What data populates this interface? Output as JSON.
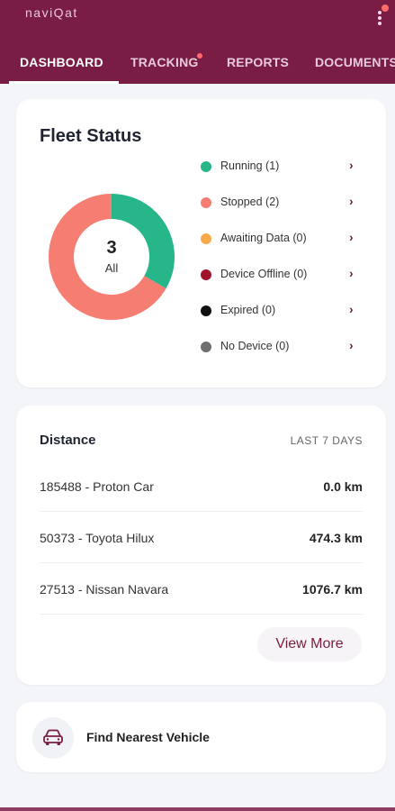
{
  "app": {
    "logo_text": "naviQat"
  },
  "tabs": [
    {
      "label": "DASHBOARD",
      "active": true
    },
    {
      "label": "TRACKING",
      "has_badge": true
    },
    {
      "label": "REPORTS"
    },
    {
      "label": "DOCUMENTS"
    }
  ],
  "fleet_status": {
    "title": "Fleet Status",
    "total": "3",
    "total_label": "All",
    "items": [
      {
        "label": "Running (1)",
        "value": 1,
        "color": "#26b68a"
      },
      {
        "label": "Stopped (2)",
        "value": 2,
        "color": "#f57d72"
      },
      {
        "label": "Awaiting Data (0)",
        "value": 0,
        "color": "#f5a94b"
      },
      {
        "label": "Device Offline (0)",
        "value": 0,
        "color": "#a1152c"
      },
      {
        "label": "Expired (0)",
        "value": 0,
        "color": "#111111"
      },
      {
        "label": "No Device (0)",
        "value": 0,
        "color": "#6f6f6f"
      }
    ]
  },
  "distance": {
    "title": "Distance",
    "range": "LAST 7 DAYS",
    "rows": [
      {
        "vehicle": "185488 - Proton Car",
        "value": "0.0 km"
      },
      {
        "vehicle": "50373 - Toyota Hilux",
        "value": "474.3 km"
      },
      {
        "vehicle": "27513 - Nissan Navara",
        "value": "1076.7 km"
      }
    ],
    "view_more": "View More"
  },
  "find_vehicle": {
    "label": "Find Nearest Vehicle"
  },
  "colors": {
    "brand": "#7a1d45",
    "accent": "#7a1d45"
  }
}
